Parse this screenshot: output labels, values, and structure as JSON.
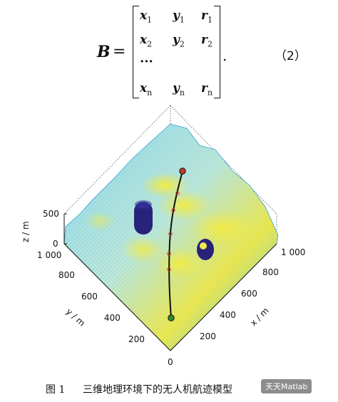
{
  "equation": {
    "lhs": "B",
    "equals": "=",
    "rows": [
      [
        "x",
        "1",
        "y",
        "1",
        "r",
        "1"
      ],
      [
        "x",
        "2",
        "y",
        "2",
        "r",
        "2"
      ],
      [
        "x",
        "n",
        "y",
        "n",
        "r",
        "n"
      ]
    ],
    "ellipsis": "···",
    "period": ".",
    "number": "（2）"
  },
  "figure": {
    "z_axis_label": "z / m",
    "y_axis_label": "y / m",
    "x_axis_label": "x / m",
    "z_ticks": [
      "500",
      "0"
    ],
    "y_ticks": [
      "1 000",
      "800",
      "600",
      "400",
      "200",
      "0"
    ],
    "x_ticks": [
      "1 000",
      "800",
      "600",
      "400",
      "200"
    ],
    "colors": {
      "terrain_low": "#5ec8e6",
      "terrain_high": "#f1e94a",
      "obstacle": "#27227a",
      "path": "#111111",
      "start": "#2e8b2e",
      "goal": "#c0392b"
    }
  },
  "caption": {
    "fig_no": "图 1",
    "title": "三维地理环境下的无人机航迹模型"
  },
  "watermark": "天天Matlab"
}
